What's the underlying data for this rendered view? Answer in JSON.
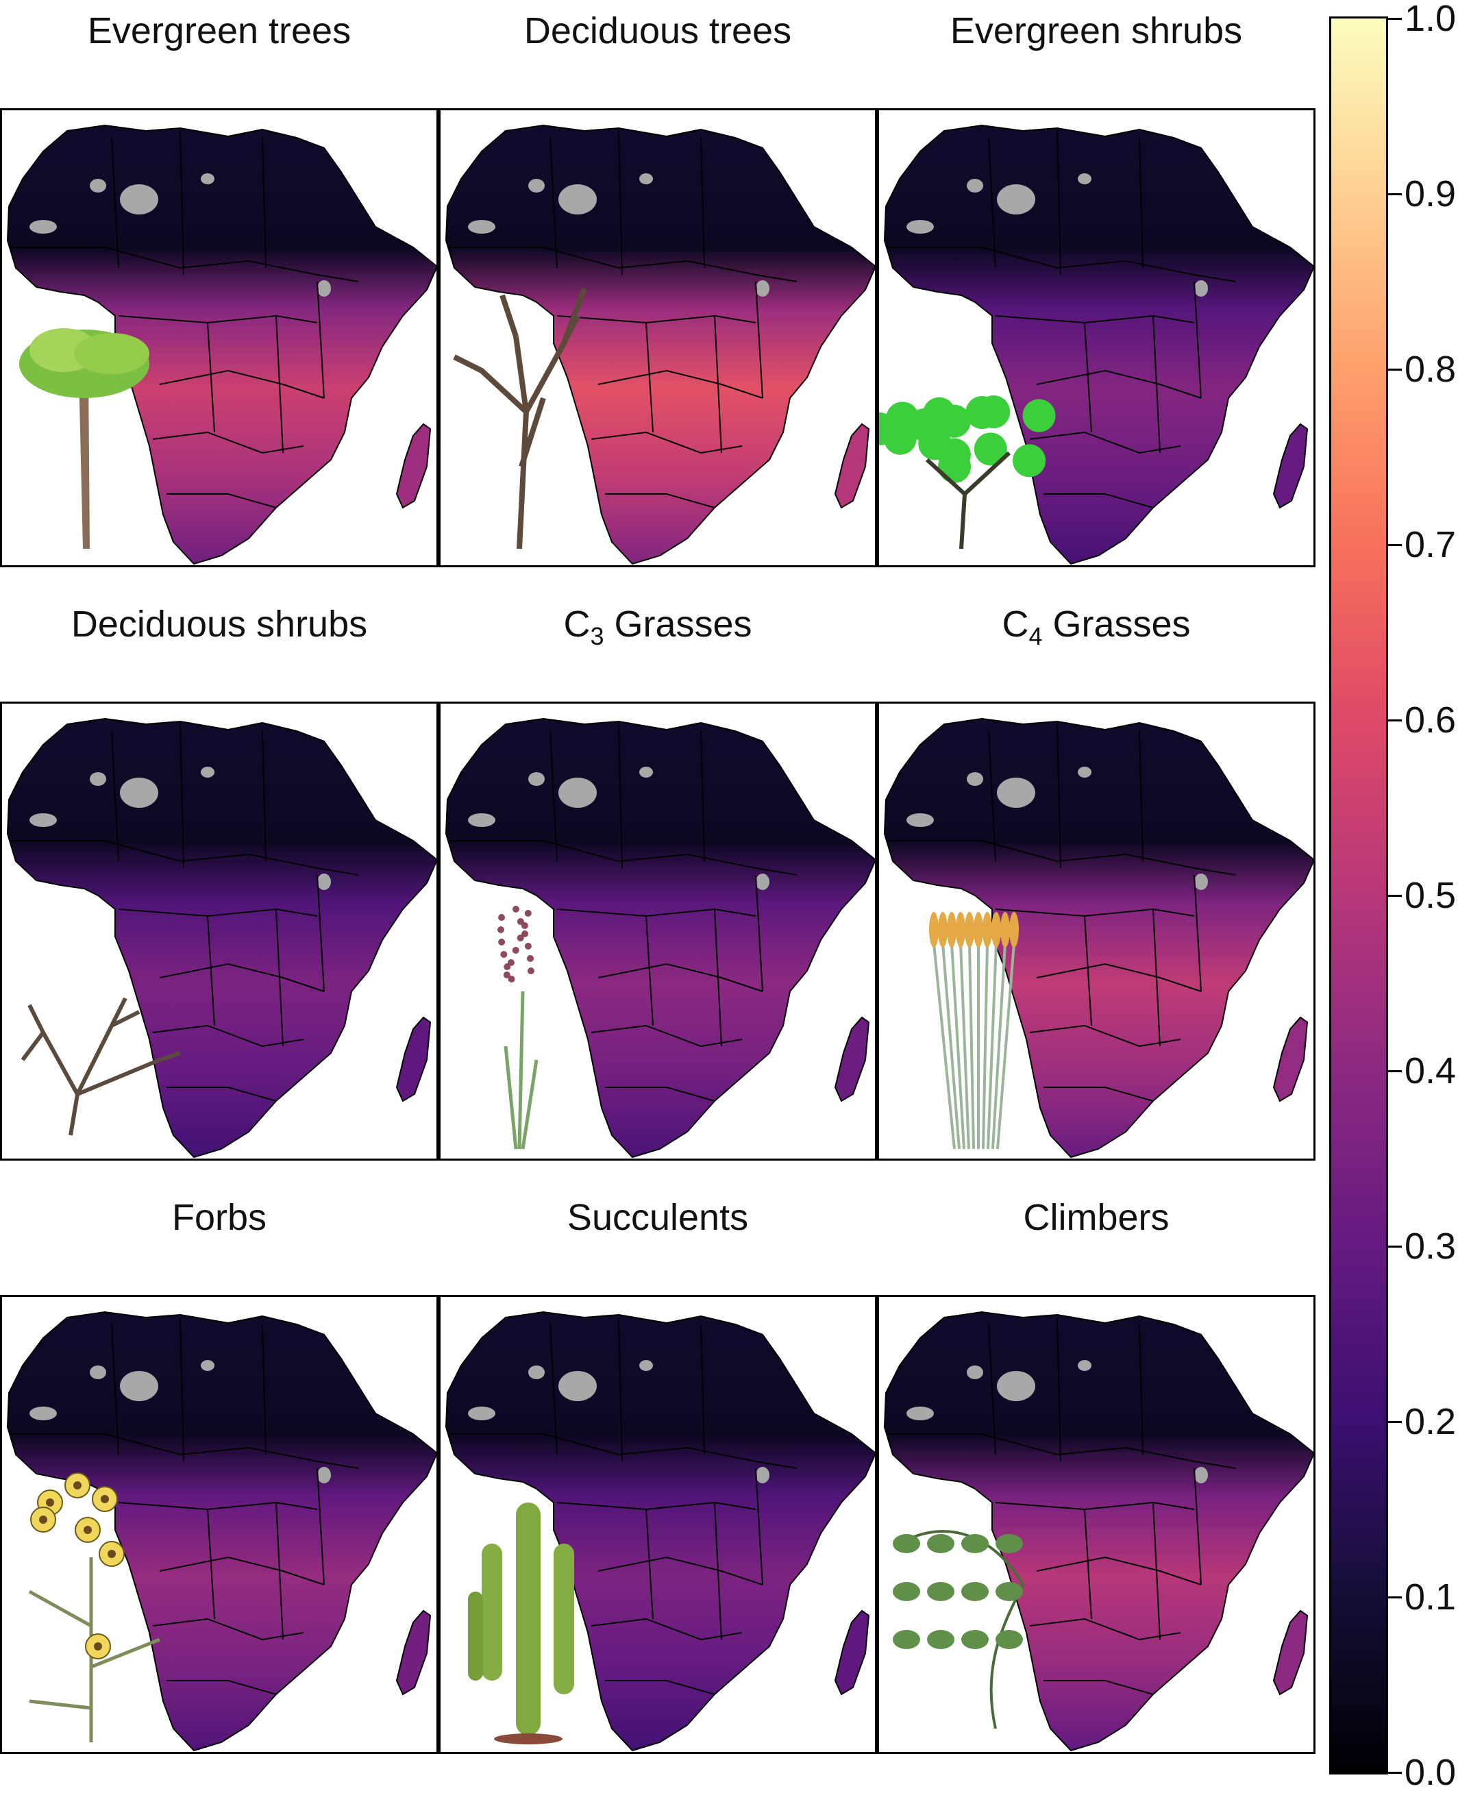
{
  "panels": [
    {
      "id": "evergreen-trees",
      "title": "Evergreen trees",
      "icon": "tree-icon",
      "intensity": 0.55
    },
    {
      "id": "deciduous-trees",
      "title": "Deciduous trees",
      "icon": "bare-tree-icon",
      "intensity": 0.62
    },
    {
      "id": "evergreen-shrubs",
      "title": "Evergreen shrubs",
      "icon": "green-shrub-icon",
      "intensity": 0.38
    },
    {
      "id": "deciduous-shrubs",
      "title": "Deciduous shrubs",
      "icon": "bare-shrub-icon",
      "intensity": 0.36
    },
    {
      "id": "c3-grasses",
      "title": "C",
      "title_sub": "3",
      "title_suffix": " Grasses",
      "icon": "grass-flower-icon",
      "intensity": 0.4
    },
    {
      "id": "c4-grasses",
      "title": "C",
      "title_sub": "4",
      "title_suffix": " Grasses",
      "icon": "tall-grass-icon",
      "intensity": 0.52
    },
    {
      "id": "forbs",
      "title": "Forbs",
      "icon": "yellow-flower-icon",
      "intensity": 0.42
    },
    {
      "id": "succulents",
      "title": "Succulents",
      "icon": "cactus-icon",
      "intensity": 0.36
    },
    {
      "id": "climbers",
      "title": "Climbers",
      "icon": "vine-icon",
      "intensity": 0.5
    }
  ],
  "colorbar": {
    "min": 0.0,
    "max": 1.0,
    "ticks": [
      "0.0",
      "0.1",
      "0.2",
      "0.3",
      "0.4",
      "0.5",
      "0.6",
      "0.7",
      "0.8",
      "0.9",
      "1.0"
    ],
    "colormap": "magma",
    "no_data_color": "#a8a8a8"
  }
}
